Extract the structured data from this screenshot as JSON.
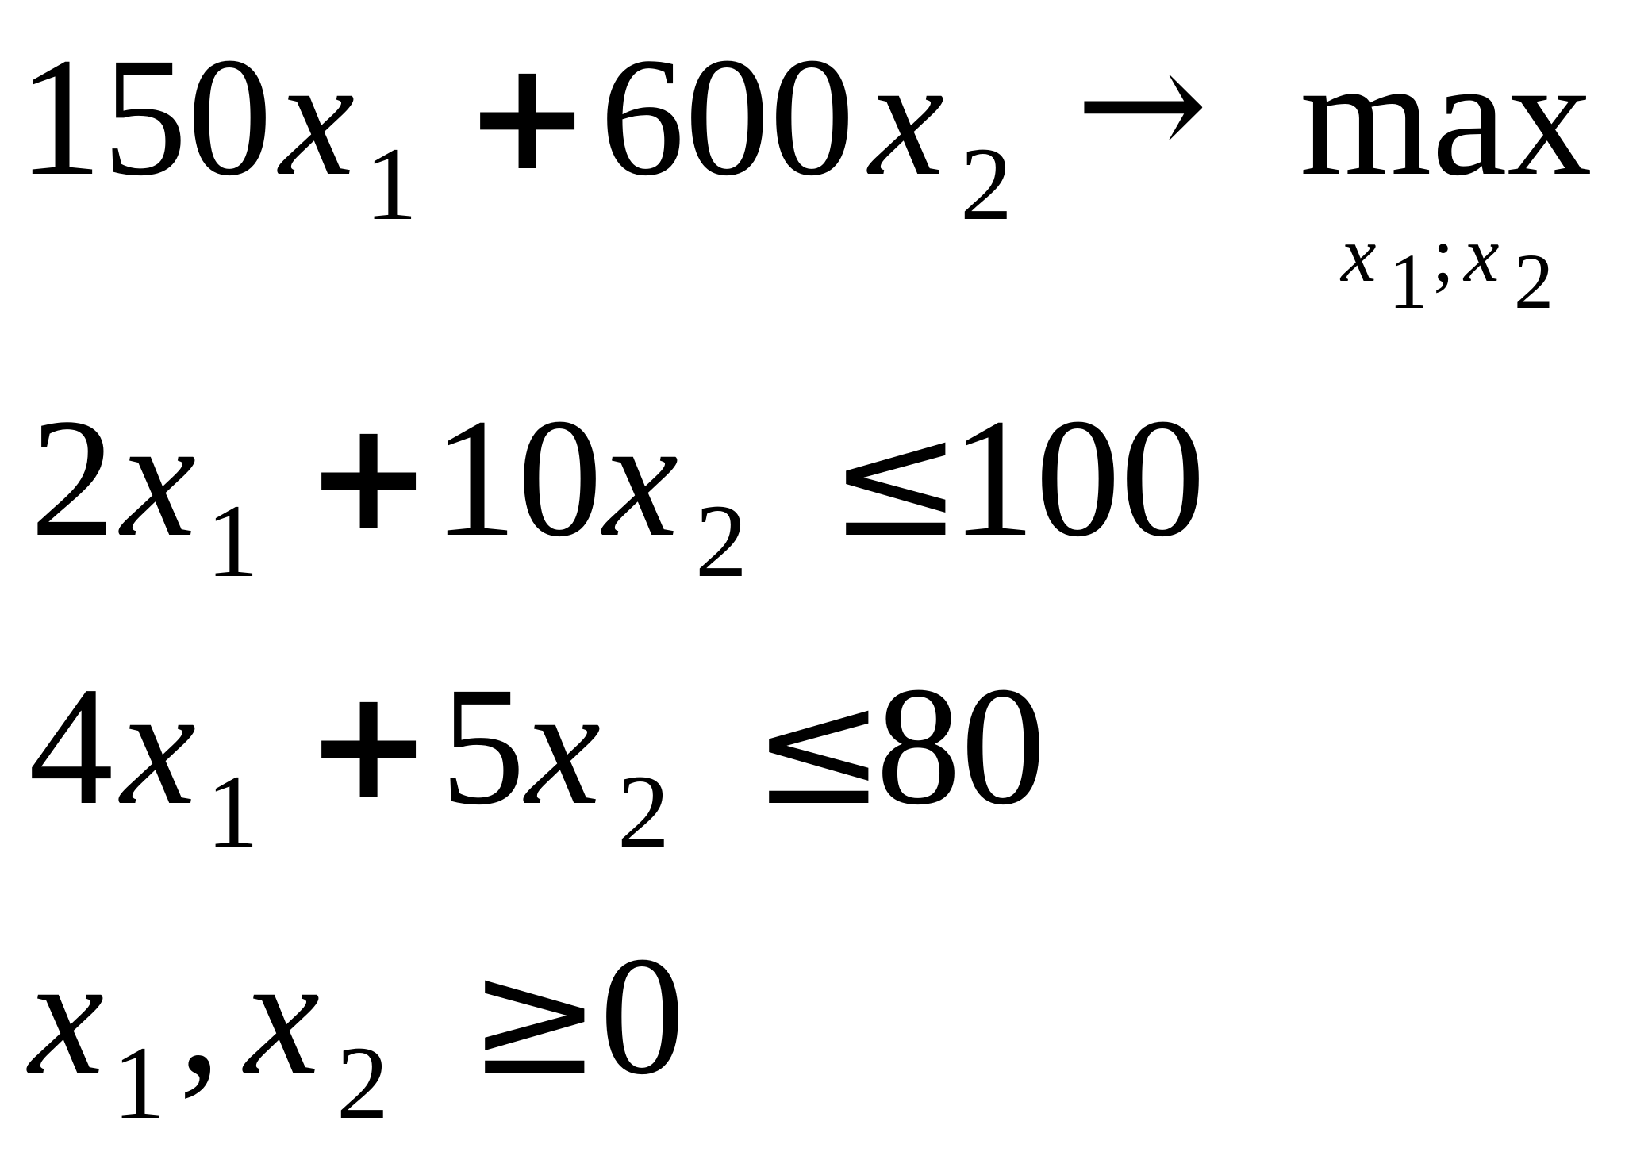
{
  "objective": {
    "coef1": "150",
    "var1": "x",
    "sub1": "1",
    "plus": "+",
    "coef2": "600",
    "var2": "x",
    "sub2": "2",
    "arrow": "→",
    "goal": "max",
    "under_var1": "x",
    "under_sub1": "1",
    "under_sep": ";",
    "under_var2": "x",
    "under_sub2": "2"
  },
  "constraints": [
    {
      "coef1": "2",
      "var1": "x",
      "sub1": "1",
      "plus": "+",
      "coef2": "10",
      "var2": "x",
      "sub2": "2",
      "relation": "≤",
      "rhs": "100"
    },
    {
      "coef1": "4",
      "var1": "x",
      "sub1": "1",
      "plus": "+",
      "coef2": "5",
      "var2": "x",
      "sub2": "2",
      "relation": "≤",
      "rhs": "80"
    }
  ],
  "nonnegativity": {
    "var1": "x",
    "sub1": "1",
    "sep": ",",
    "var2": "x",
    "sub2": "2",
    "relation": "≥",
    "rhs": "0"
  }
}
